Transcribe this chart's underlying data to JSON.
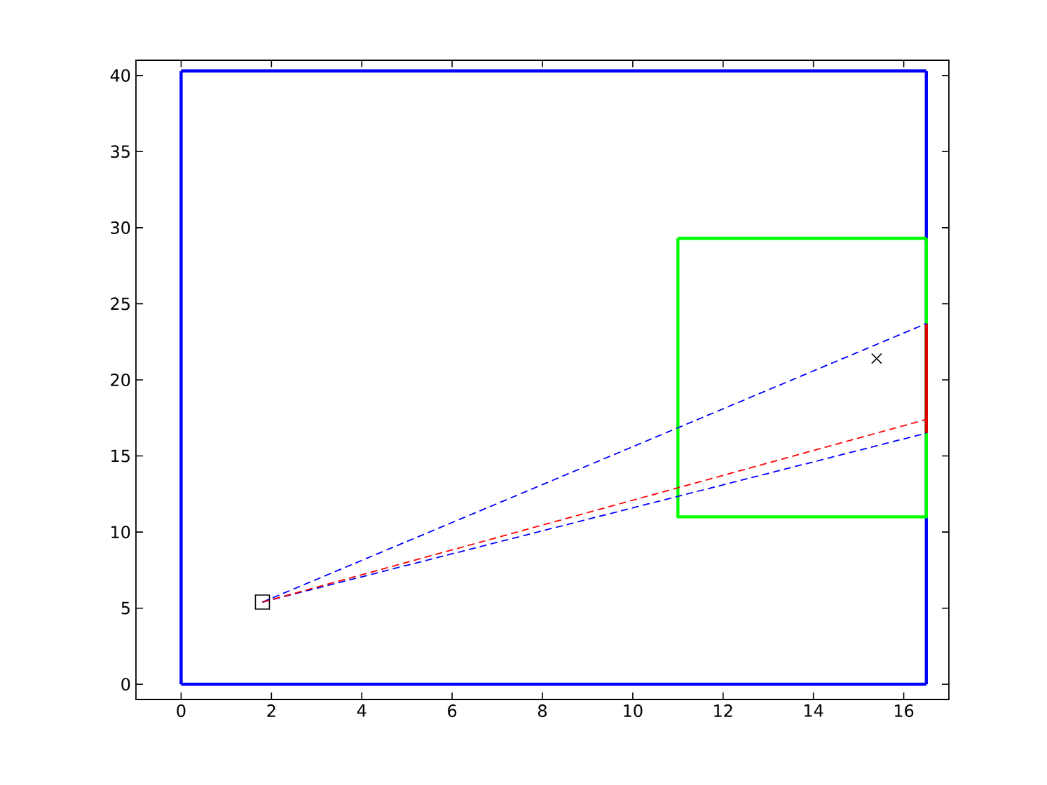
{
  "chart_data": {
    "type": "line",
    "xlim": [
      -1,
      17
    ],
    "ylim": [
      -1,
      41
    ],
    "xticks": [
      0,
      2,
      4,
      6,
      8,
      10,
      12,
      14,
      16
    ],
    "yticks": [
      0,
      5,
      10,
      15,
      20,
      25,
      30,
      35,
      40
    ],
    "grid": false,
    "series": [
      {
        "color": "#0000ff",
        "line_style": "solid",
        "marker": "none",
        "x": [
          0,
          0
        ],
        "values": [
          40.3,
          0
        ]
      },
      {
        "color": "#0000ff",
        "line_style": "solid",
        "marker": "none",
        "x": [
          0,
          16.5
        ],
        "values": [
          0,
          0
        ]
      },
      {
        "color": "#0000ff",
        "line_style": "solid",
        "marker": "none",
        "x": [
          16.5,
          16.5
        ],
        "values": [
          0,
          40.3
        ]
      },
      {
        "color": "#0000ff",
        "line_style": "solid",
        "marker": "none",
        "x": [
          0,
          16.5
        ],
        "values": [
          40.3,
          40.3
        ]
      },
      {
        "color": "#00ff00",
        "line_style": "solid",
        "marker": "none",
        "x": [
          11,
          11,
          16.5,
          16.5
        ],
        "values": [
          29.3,
          11,
          11,
          29.3
        ]
      },
      {
        "color": "#00ff00",
        "line_style": "solid",
        "marker": "none",
        "x": [
          11,
          16.5
        ],
        "values": [
          29.3,
          29.3
        ]
      },
      {
        "color": "#dd0000",
        "line_style": "solid",
        "marker": "none",
        "x": [
          16.5,
          16.5
        ],
        "values": [
          16.5,
          23.7
        ]
      },
      {
        "color": "#0000ff",
        "line_style": "dashed",
        "marker": "none",
        "x": [
          1.8,
          16.5
        ],
        "values": [
          5.4,
          23.7
        ]
      },
      {
        "color": "#0000ff",
        "line_style": "dashed",
        "marker": "none",
        "x": [
          1.8,
          16.5
        ],
        "values": [
          5.4,
          16.5
        ]
      },
      {
        "color": "#ff0000",
        "line_style": "dashed",
        "marker": "none",
        "x": [
          1.8,
          16.5
        ],
        "values": [
          5.4,
          17.4
        ]
      },
      {
        "type": "scatter",
        "color": "#000000",
        "marker": "square",
        "x": [
          1.8
        ],
        "values": [
          5.4
        ]
      },
      {
        "type": "scatter",
        "color": "#000000",
        "marker": "cross",
        "x": [
          15.4
        ],
        "values": [
          21.4
        ]
      }
    ]
  }
}
